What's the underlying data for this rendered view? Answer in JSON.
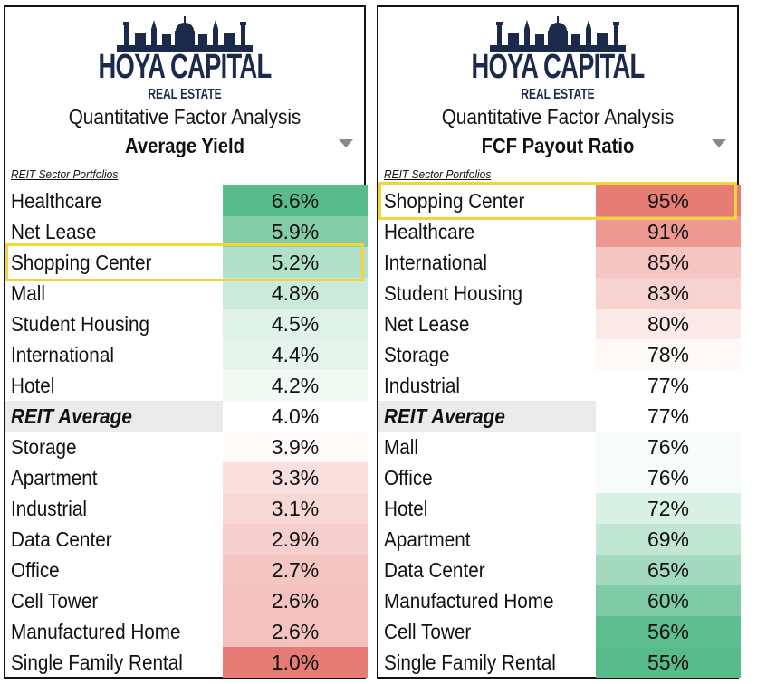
{
  "brand": {
    "name": "HOYA CAPITAL",
    "sub": "REAL ESTATE"
  },
  "panels": [
    {
      "subtitle": "Quantitative Factor Analysis",
      "metric": "Average Yield",
      "section_label": "REIT Sector Portfolios",
      "highlight_row": 2
    },
    {
      "subtitle": "Quantitative Factor Analysis",
      "metric": "FCF Payout Ratio",
      "section_label": "REIT Sector Portfolios",
      "highlight_row": 0
    }
  ],
  "chart_data": [
    {
      "type": "table",
      "title": "Average Yield",
      "columns": [
        "REIT Sector Portfolios",
        "Average Yield"
      ],
      "rows": [
        {
          "name": "Healthcare",
          "value": 6.6,
          "label": "6.6%"
        },
        {
          "name": "Net Lease",
          "value": 5.9,
          "label": "5.9%"
        },
        {
          "name": "Shopping Center",
          "value": 5.2,
          "label": "5.2%"
        },
        {
          "name": "Mall",
          "value": 4.8,
          "label": "4.8%"
        },
        {
          "name": "Student Housing",
          "value": 4.5,
          "label": "4.5%"
        },
        {
          "name": "International",
          "value": 4.4,
          "label": "4.4%"
        },
        {
          "name": "Hotel",
          "value": 4.2,
          "label": "4.2%"
        },
        {
          "name": "REIT Average",
          "value": 4.0,
          "label": "4.0%",
          "is_average": true
        },
        {
          "name": "Storage",
          "value": 3.9,
          "label": "3.9%"
        },
        {
          "name": "Apartment",
          "value": 3.3,
          "label": "3.3%"
        },
        {
          "name": "Industrial",
          "value": 3.1,
          "label": "3.1%"
        },
        {
          "name": "Data Center",
          "value": 2.9,
          "label": "2.9%"
        },
        {
          "name": "Office",
          "value": 2.7,
          "label": "2.7%"
        },
        {
          "name": "Cell Tower",
          "value": 2.6,
          "label": "2.6%"
        },
        {
          "name": "Manufactured Home",
          "value": 2.6,
          "label": "2.6%"
        },
        {
          "name": "Single Family Rental",
          "value": 1.0,
          "label": "1.0%"
        }
      ],
      "color_scale": {
        "high": "#57bb8a",
        "mid": "#ffffff",
        "low": "#e67c73",
        "high_is_good": true
      }
    },
    {
      "type": "table",
      "title": "FCF Payout Ratio",
      "columns": [
        "REIT Sector Portfolios",
        "FCF Payout Ratio"
      ],
      "rows": [
        {
          "name": "Shopping Center",
          "value": 95,
          "label": "95%"
        },
        {
          "name": "Healthcare",
          "value": 91,
          "label": "91%"
        },
        {
          "name": "International",
          "value": 85,
          "label": "85%"
        },
        {
          "name": "Student Housing",
          "value": 83,
          "label": "83%"
        },
        {
          "name": "Net Lease",
          "value": 80,
          "label": "80%"
        },
        {
          "name": "Storage",
          "value": 78,
          "label": "78%"
        },
        {
          "name": "Industrial",
          "value": 77,
          "label": "77%"
        },
        {
          "name": "REIT Average",
          "value": 77,
          "label": "77%",
          "is_average": true
        },
        {
          "name": "Mall",
          "value": 76,
          "label": "76%"
        },
        {
          "name": "Office",
          "value": 76,
          "label": "76%"
        },
        {
          "name": "Hotel",
          "value": 72,
          "label": "72%"
        },
        {
          "name": "Apartment",
          "value": 69,
          "label": "69%"
        },
        {
          "name": "Data Center",
          "value": 65,
          "label": "65%"
        },
        {
          "name": "Manufactured Home",
          "value": 60,
          "label": "60%"
        },
        {
          "name": "Cell Tower",
          "value": 56,
          "label": "56%"
        },
        {
          "name": "Single Family Rental",
          "value": 55,
          "label": "55%"
        }
      ],
      "color_scale": {
        "high": "#e67c73",
        "mid": "#ffffff",
        "low": "#57bb8a",
        "high_is_good": false
      }
    }
  ]
}
